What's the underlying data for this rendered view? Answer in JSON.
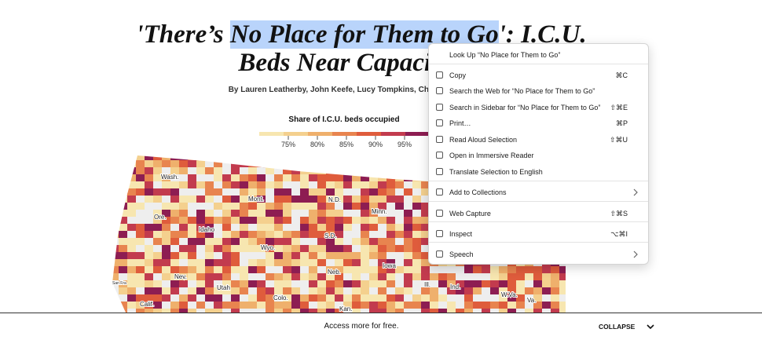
{
  "article": {
    "headline_line1": [
      "'There’s ",
      "No Place for Them to Go",
      "': I.C.U."
    ],
    "headline_line2": "Beds Near Capacity Ac",
    "byline": "By Lauren Leatherby, John Keefe, Lucy Tompkins, Charlie Smart and M",
    "legend": {
      "title": "Share of I.C.U. beds occupied",
      "ticks": [
        "75%",
        "80%",
        "85%",
        "90%",
        "95%"
      ]
    },
    "map_labels": [
      "Wash.",
      "Ore.",
      "Idaho",
      "Mont.",
      "Wyo.",
      "Nev.",
      "Utah",
      "Colo.",
      "Calif.",
      "N.D.",
      "S.D.",
      "Neb.",
      "Kan.",
      "Minn.",
      "Iowa",
      "Ill.",
      "Ind.",
      "W.Va.",
      "Va.",
      "San Fra"
    ]
  },
  "context_menu": {
    "items": [
      {
        "label": "Look Up “No Place for Them to Go”"
      },
      {
        "label": "Copy",
        "shortcut": "⌘C"
      },
      {
        "label": "Search the Web for “No Place for Them to Go”"
      },
      {
        "label": "Search in Sidebar for “No Place for Them to Go”",
        "shortcut": "⇧⌘E"
      },
      {
        "label": "Print…",
        "shortcut": "⌘P"
      },
      {
        "label": "Read Aloud Selection",
        "shortcut": "⇧⌘U"
      },
      {
        "label": "Open in Immersive Reader"
      },
      {
        "label": "Translate Selection to English"
      },
      {
        "label": "Add to Collections",
        "submenu": true
      },
      {
        "label": "Web Capture",
        "shortcut": "⇧⌘S"
      },
      {
        "label": "Inspect",
        "shortcut": "⌥⌘I"
      },
      {
        "label": "Speech",
        "submenu": true
      }
    ]
  },
  "footer": {
    "message": "Access more for free.",
    "button": "COLLAPSE"
  }
}
